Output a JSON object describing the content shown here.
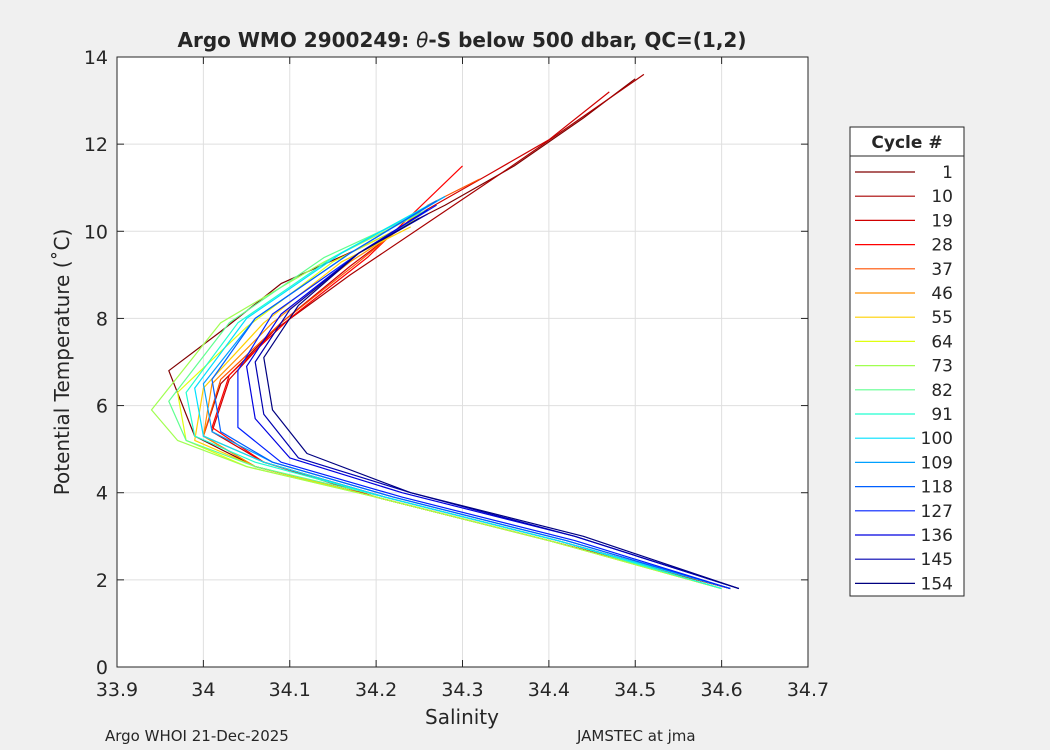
{
  "chart_data": {
    "type": "line",
    "title": "Argo WMO 2900249: θ-S below 500 dbar,  QC=(1,2)",
    "title_parts": {
      "prefix": "Argo WMO 2900249: ",
      "symbol": "θ",
      "suffix": "-S below 500 dbar,  QC=(1,2)"
    },
    "xlabel": "Salinity",
    "ylabel": "Potential Temperature (˚C)",
    "xlim": [
      33.9,
      34.7
    ],
    "ylim": [
      0,
      14
    ],
    "xticks": [
      33.9,
      34.0,
      34.1,
      34.2,
      34.3,
      34.4,
      34.5,
      34.6,
      34.7
    ],
    "xtick_labels": [
      "33.9",
      "34",
      "34.1",
      "34.2",
      "34.3",
      "34.4",
      "34.5",
      "34.6",
      "34.7"
    ],
    "yticks": [
      0,
      2,
      4,
      6,
      8,
      10,
      12,
      14
    ],
    "ytick_labels": [
      "0",
      "2",
      "4",
      "6",
      "8",
      "10",
      "12",
      "14"
    ],
    "grid": true,
    "legend": {
      "title": "Cycle #",
      "placement": "outside-right",
      "entries": [
        "1",
        "10",
        "19",
        "28",
        "37",
        "46",
        "55",
        "64",
        "73",
        "82",
        "91",
        "100",
        "109",
        "118",
        "127",
        "136",
        "145",
        "154"
      ]
    },
    "colormap": "jet-reversed",
    "series": [
      {
        "name": "1",
        "color": "#800000",
        "x": [
          34.61,
          34.4,
          34.2,
          34.06,
          33.99,
          33.96,
          34.02,
          34.09,
          34.18,
          34.28,
          34.36,
          34.44,
          34.5
        ],
        "y": [
          1.8,
          2.9,
          3.9,
          4.6,
          5.3,
          6.8,
          7.7,
          8.8,
          9.6,
          10.6,
          11.5,
          12.6,
          13.5
        ]
      },
      {
        "name": "10",
        "color": "#a80000",
        "x": [
          34.61,
          34.4,
          34.2,
          34.06,
          34.0,
          34.02,
          34.08,
          34.17,
          34.26,
          34.35,
          34.43,
          34.51
        ],
        "y": [
          1.8,
          2.9,
          3.9,
          4.6,
          5.3,
          6.5,
          7.7,
          9.0,
          10.2,
          11.4,
          12.5,
          13.6
        ]
      },
      {
        "name": "19",
        "color": "#d00000",
        "x": [
          34.61,
          34.4,
          34.2,
          34.07,
          34.01,
          34.03,
          34.09,
          34.17,
          34.25,
          34.33,
          34.4,
          34.47
        ],
        "y": [
          1.8,
          2.9,
          3.9,
          4.7,
          5.4,
          6.6,
          7.9,
          9.2,
          10.4,
          11.3,
          12.1,
          13.2
        ]
      },
      {
        "name": "28",
        "color": "#ff0000",
        "x": [
          34.61,
          34.41,
          34.21,
          34.07,
          34.01,
          34.03,
          34.1,
          34.19,
          34.3
        ],
        "y": [
          1.8,
          2.9,
          3.9,
          4.7,
          5.5,
          6.7,
          8.0,
          9.4,
          11.5
        ]
      },
      {
        "name": "37",
        "color": "#ff5000",
        "x": [
          34.61,
          34.41,
          34.21,
          34.07,
          34.0,
          34.02,
          34.09,
          34.18,
          34.26,
          34.32
        ],
        "y": [
          1.8,
          2.9,
          3.9,
          4.7,
          5.3,
          6.6,
          7.9,
          9.3,
          10.6,
          11.2
        ]
      },
      {
        "name": "46",
        "color": "#ff9000",
        "x": [
          34.6,
          34.4,
          34.2,
          34.06,
          34.0,
          34.01,
          34.08,
          34.17,
          34.24
        ],
        "y": [
          1.8,
          2.9,
          3.9,
          4.6,
          5.3,
          6.5,
          7.9,
          9.3,
          10.2
        ]
      },
      {
        "name": "55",
        "color": "#ffd000",
        "x": [
          34.6,
          34.4,
          34.2,
          34.06,
          33.99,
          34.0,
          34.07,
          34.16,
          34.24
        ],
        "y": [
          1.8,
          2.9,
          3.9,
          4.6,
          5.2,
          6.4,
          7.9,
          9.3,
          10.1
        ]
      },
      {
        "name": "64",
        "color": "#e0ff10",
        "x": [
          34.6,
          34.4,
          34.2,
          34.05,
          33.98,
          33.97,
          34.05,
          34.15,
          34.25
        ],
        "y": [
          1.8,
          2.9,
          3.9,
          4.6,
          5.2,
          6.3,
          7.8,
          9.3,
          10.3
        ]
      },
      {
        "name": "73",
        "color": "#a0ff50",
        "x": [
          34.6,
          34.4,
          34.2,
          34.05,
          33.97,
          33.94,
          34.02,
          34.14,
          34.25
        ],
        "y": [
          1.8,
          2.9,
          3.9,
          4.6,
          5.2,
          5.9,
          7.9,
          9.3,
          10.4
        ]
      },
      {
        "name": "82",
        "color": "#60ff90",
        "x": [
          34.6,
          34.41,
          34.21,
          34.06,
          33.98,
          33.96,
          34.03,
          34.14,
          34.26
        ],
        "y": [
          1.8,
          2.9,
          3.9,
          4.6,
          5.2,
          6.1,
          7.9,
          9.4,
          10.5
        ]
      },
      {
        "name": "91",
        "color": "#20ffd0",
        "x": [
          34.6,
          34.41,
          34.21,
          34.06,
          33.99,
          33.98,
          34.04,
          34.15,
          34.27
        ],
        "y": [
          1.8,
          2.9,
          3.9,
          4.7,
          5.3,
          6.3,
          7.9,
          9.4,
          10.7
        ]
      },
      {
        "name": "100",
        "color": "#00e0ff",
        "x": [
          34.61,
          34.41,
          34.21,
          34.07,
          34.0,
          33.99,
          34.05,
          34.16,
          34.28
        ],
        "y": [
          1.8,
          2.9,
          3.9,
          4.7,
          5.3,
          6.4,
          8.0,
          9.5,
          10.8
        ]
      },
      {
        "name": "109",
        "color": "#00a0ff",
        "x": [
          34.61,
          34.42,
          34.22,
          34.08,
          34.01,
          34.0,
          34.06,
          34.17,
          34.28
        ],
        "y": [
          1.8,
          2.9,
          3.9,
          4.7,
          5.4,
          6.5,
          8.0,
          9.5,
          10.8
        ]
      },
      {
        "name": "118",
        "color": "#0060ff",
        "x": [
          34.61,
          34.42,
          34.22,
          34.08,
          34.02,
          34.01,
          34.06,
          34.17,
          34.27
        ],
        "y": [
          1.8,
          2.9,
          3.9,
          4.7,
          5.4,
          6.6,
          8.0,
          9.5,
          10.7
        ]
      },
      {
        "name": "127",
        "color": "#0020ff",
        "x": [
          34.61,
          34.43,
          34.23,
          34.09,
          34.04,
          34.04,
          34.08,
          34.18,
          34.27
        ],
        "y": [
          1.8,
          2.9,
          3.9,
          4.7,
          5.5,
          6.8,
          8.1,
          9.5,
          10.6
        ]
      },
      {
        "name": "136",
        "color": "#0000e0",
        "x": [
          34.62,
          34.43,
          34.23,
          34.1,
          34.06,
          34.05,
          34.09,
          34.18,
          34.26
        ],
        "y": [
          1.8,
          3.0,
          4.0,
          4.8,
          5.7,
          6.9,
          8.1,
          9.5,
          10.5
        ]
      },
      {
        "name": "145",
        "color": "#0000b0",
        "x": [
          34.62,
          34.43,
          34.24,
          34.11,
          34.07,
          34.06,
          34.1,
          34.18,
          34.26
        ],
        "y": [
          1.8,
          3.0,
          4.0,
          4.8,
          5.8,
          7.0,
          8.2,
          9.5,
          10.4
        ]
      },
      {
        "name": "154",
        "color": "#000080",
        "x": [
          34.62,
          34.44,
          34.24,
          34.12,
          34.08,
          34.07,
          34.11,
          34.18,
          34.25
        ],
        "y": [
          1.8,
          3.0,
          4.0,
          4.9,
          5.9,
          7.1,
          8.3,
          9.5,
          10.3
        ]
      }
    ]
  },
  "footer": {
    "left": "Argo WHOI 21-Dec-2025",
    "right": "JAMSTEC at jma"
  }
}
